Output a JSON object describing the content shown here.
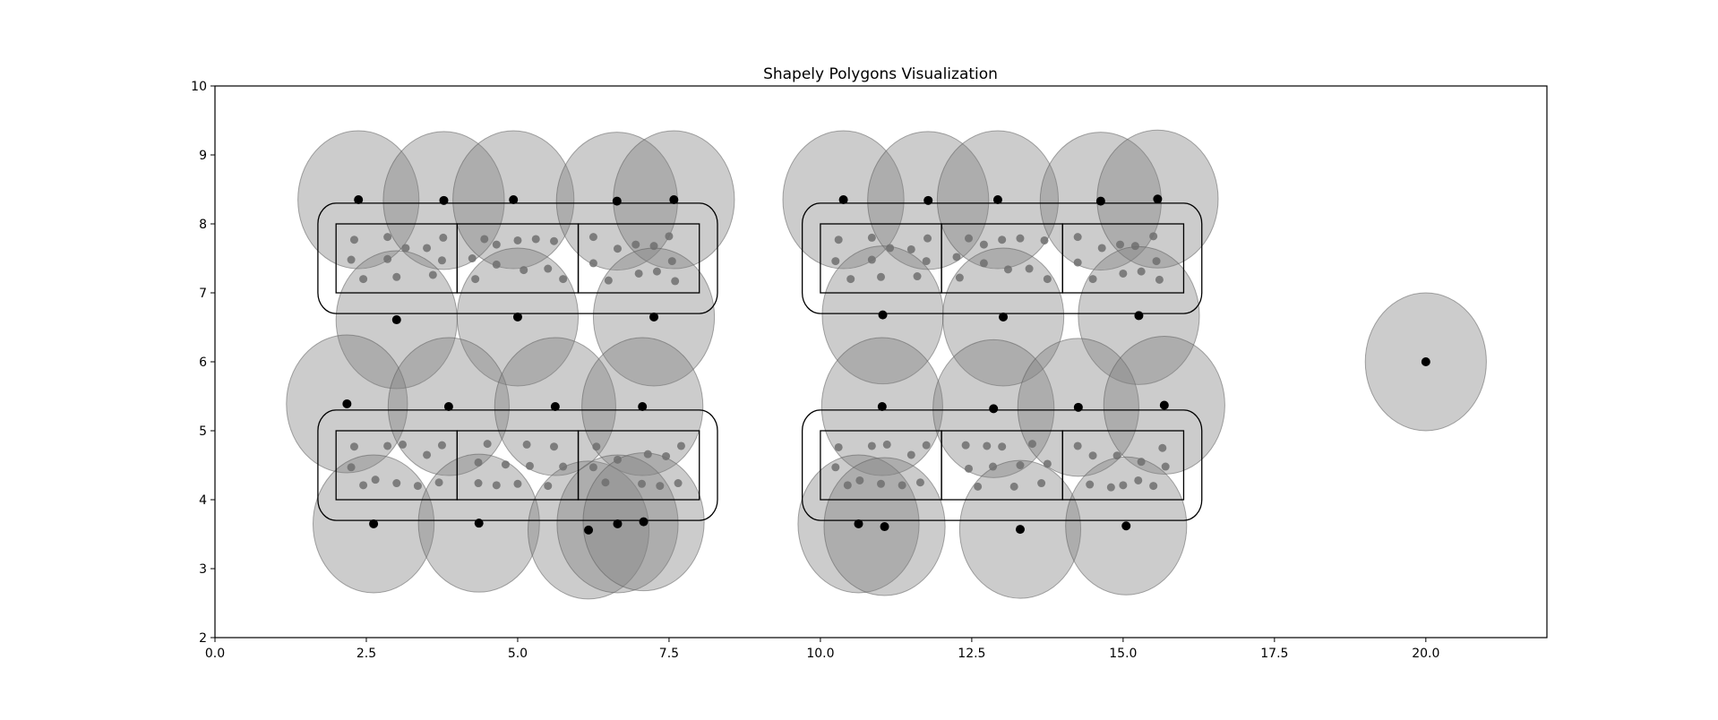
{
  "chart_data": {
    "type": "scatter",
    "title": "Shapely Polygons Visualization",
    "xlabel": "",
    "ylabel": "",
    "xlim": [
      0,
      22
    ],
    "ylim": [
      2,
      10
    ],
    "xticks": [
      0.0,
      2.5,
      5.0,
      7.5,
      10.0,
      12.5,
      15.0,
      17.5,
      20.0
    ],
    "xtick_labels": [
      "0.0",
      "2.5",
      "5.0",
      "7.5",
      "10.0",
      "12.5",
      "15.0",
      "17.5",
      "20.0"
    ],
    "yticks": [
      2,
      3,
      4,
      5,
      6,
      7,
      8,
      9,
      10
    ],
    "ytick_labels": [
      "2",
      "3",
      "4",
      "5",
      "6",
      "7",
      "8",
      "9",
      "10"
    ],
    "grid": false,
    "colors": {
      "circle_fill": "#808080",
      "point": "#000000",
      "inner_point": "#6e6e6e",
      "outline": "#000000"
    },
    "blocks": [
      {
        "x0": 2,
        "x1": 8,
        "y0": 7,
        "y1": 8,
        "buffer": 0.3,
        "columns": 3
      },
      {
        "x0": 10,
        "x1": 16,
        "y0": 7,
        "y1": 8,
        "buffer": 0.3,
        "columns": 3
      },
      {
        "x0": 2,
        "x1": 8,
        "y0": 4,
        "y1": 5,
        "buffer": 0.3,
        "columns": 3
      },
      {
        "x0": 10,
        "x1": 16,
        "y0": 4,
        "y1": 5,
        "buffer": 0.3,
        "columns": 3
      }
    ],
    "circle_radius": 1,
    "circles": [
      [
        2.37,
        8.35
      ],
      [
        3.78,
        8.34
      ],
      [
        4.93,
        8.35
      ],
      [
        6.64,
        8.33
      ],
      [
        7.58,
        8.35
      ],
      [
        3.0,
        6.61
      ],
      [
        5.0,
        6.65
      ],
      [
        7.25,
        6.65
      ],
      [
        2.18,
        5.39
      ],
      [
        3.86,
        5.35
      ],
      [
        5.62,
        5.35
      ],
      [
        7.06,
        5.35
      ],
      [
        2.62,
        3.65
      ],
      [
        4.36,
        3.66
      ],
      [
        6.17,
        3.56
      ],
      [
        6.65,
        3.65
      ],
      [
        7.08,
        3.68
      ],
      [
        10.38,
        8.35
      ],
      [
        11.78,
        8.34
      ],
      [
        12.93,
        8.35
      ],
      [
        14.63,
        8.33
      ],
      [
        15.57,
        8.36
      ],
      [
        11.03,
        6.68
      ],
      [
        13.02,
        6.65
      ],
      [
        15.26,
        6.67
      ],
      [
        11.02,
        5.35
      ],
      [
        12.86,
        5.32
      ],
      [
        14.26,
        5.34
      ],
      [
        15.68,
        5.37
      ],
      [
        10.63,
        3.65
      ],
      [
        11.06,
        3.61
      ],
      [
        13.3,
        3.57
      ],
      [
        15.05,
        3.62
      ],
      [
        20.0,
        6.0
      ]
    ],
    "inner_points": [
      [
        2.3,
        7.77
      ],
      [
        2.85,
        7.81
      ],
      [
        3.5,
        7.65
      ],
      [
        3.77,
        7.8
      ],
      [
        2.45,
        7.2
      ],
      [
        3.0,
        7.23
      ],
      [
        3.6,
        7.26
      ],
      [
        2.25,
        7.48
      ],
      [
        2.85,
        7.49
      ],
      [
        3.15,
        7.65
      ],
      [
        3.75,
        7.47
      ],
      [
        4.25,
        7.5
      ],
      [
        4.45,
        7.78
      ],
      [
        4.65,
        7.7
      ],
      [
        5.0,
        7.76
      ],
      [
        5.3,
        7.78
      ],
      [
        5.6,
        7.75
      ],
      [
        4.3,
        7.2
      ],
      [
        4.65,
        7.41
      ],
      [
        5.1,
        7.33
      ],
      [
        5.5,
        7.35
      ],
      [
        5.75,
        7.2
      ],
      [
        6.25,
        7.81
      ],
      [
        6.65,
        7.64
      ],
      [
        6.95,
        7.7
      ],
      [
        7.25,
        7.68
      ],
      [
        7.5,
        7.82
      ],
      [
        6.25,
        7.43
      ],
      [
        6.5,
        7.18
      ],
      [
        7.0,
        7.28
      ],
      [
        7.3,
        7.31
      ],
      [
        7.55,
        7.46
      ],
      [
        7.6,
        7.17
      ],
      [
        2.3,
        4.77
      ],
      [
        2.85,
        4.78
      ],
      [
        3.1,
        4.8
      ],
      [
        3.75,
        4.79
      ],
      [
        2.25,
        4.47
      ],
      [
        2.65,
        4.29
      ],
      [
        2.45,
        4.21
      ],
      [
        3.0,
        4.24
      ],
      [
        3.35,
        4.2
      ],
      [
        3.7,
        4.25
      ],
      [
        3.5,
        4.65
      ],
      [
        4.5,
        4.81
      ],
      [
        4.35,
        4.54
      ],
      [
        4.8,
        4.51
      ],
      [
        5.15,
        4.8
      ],
      [
        5.6,
        4.77
      ],
      [
        4.35,
        4.24
      ],
      [
        4.65,
        4.21
      ],
      [
        5.0,
        4.23
      ],
      [
        5.2,
        4.49
      ],
      [
        5.5,
        4.2
      ],
      [
        5.75,
        4.48
      ],
      [
        6.25,
        4.47
      ],
      [
        6.3,
        4.77
      ],
      [
        6.65,
        4.58
      ],
      [
        7.15,
        4.66
      ],
      [
        7.45,
        4.63
      ],
      [
        7.7,
        4.78
      ],
      [
        6.45,
        4.25
      ],
      [
        7.05,
        4.23
      ],
      [
        7.35,
        4.2
      ],
      [
        7.65,
        4.24
      ],
      [
        10.3,
        7.77
      ],
      [
        10.85,
        7.8
      ],
      [
        11.5,
        7.63
      ],
      [
        11.77,
        7.79
      ],
      [
        10.5,
        7.2
      ],
      [
        11.0,
        7.23
      ],
      [
        11.6,
        7.24
      ],
      [
        10.25,
        7.46
      ],
      [
        10.85,
        7.48
      ],
      [
        11.15,
        7.65
      ],
      [
        11.75,
        7.46
      ],
      [
        12.25,
        7.52
      ],
      [
        12.45,
        7.79
      ],
      [
        12.7,
        7.7
      ],
      [
        13.0,
        7.77
      ],
      [
        13.3,
        7.79
      ],
      [
        13.7,
        7.76
      ],
      [
        12.3,
        7.22
      ],
      [
        12.7,
        7.43
      ],
      [
        13.1,
        7.34
      ],
      [
        13.45,
        7.35
      ],
      [
        13.75,
        7.2
      ],
      [
        14.25,
        7.81
      ],
      [
        14.65,
        7.65
      ],
      [
        14.95,
        7.7
      ],
      [
        15.2,
        7.68
      ],
      [
        15.5,
        7.82
      ],
      [
        14.25,
        7.44
      ],
      [
        14.5,
        7.2
      ],
      [
        15.0,
        7.28
      ],
      [
        15.3,
        7.31
      ],
      [
        15.55,
        7.46
      ],
      [
        15.6,
        7.19
      ],
      [
        10.3,
        4.76
      ],
      [
        10.85,
        4.78
      ],
      [
        11.1,
        4.8
      ],
      [
        11.75,
        4.79
      ],
      [
        10.25,
        4.47
      ],
      [
        10.65,
        4.28
      ],
      [
        10.45,
        4.21
      ],
      [
        11.0,
        4.23
      ],
      [
        11.35,
        4.21
      ],
      [
        11.65,
        4.25
      ],
      [
        11.5,
        4.65
      ],
      [
        12.4,
        4.79
      ],
      [
        12.75,
        4.78
      ],
      [
        13.0,
        4.77
      ],
      [
        12.45,
        4.45
      ],
      [
        12.85,
        4.48
      ],
      [
        13.3,
        4.5
      ],
      [
        12.6,
        4.19
      ],
      [
        13.2,
        4.19
      ],
      [
        13.65,
        4.24
      ],
      [
        13.5,
        4.81
      ],
      [
        13.75,
        4.52
      ],
      [
        14.25,
        4.78
      ],
      [
        14.5,
        4.64
      ],
      [
        14.9,
        4.64
      ],
      [
        15.3,
        4.55
      ],
      [
        15.65,
        4.75
      ],
      [
        14.45,
        4.22
      ],
      [
        14.8,
        4.18
      ],
      [
        15.0,
        4.21
      ],
      [
        15.25,
        4.28
      ],
      [
        15.5,
        4.2
      ],
      [
        15.7,
        4.48
      ]
    ]
  }
}
